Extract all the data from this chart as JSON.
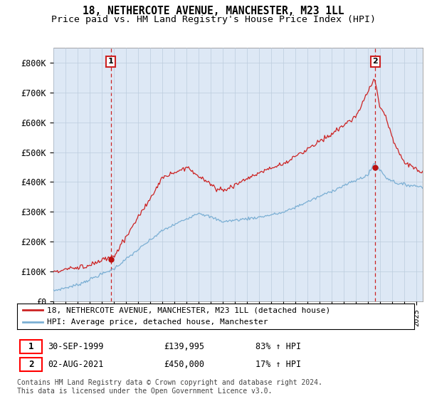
{
  "title": "18, NETHERCOTE AVENUE, MANCHESTER, M23 1LL",
  "subtitle": "Price paid vs. HM Land Registry's House Price Index (HPI)",
  "ylim": [
    0,
    850000
  ],
  "yticks": [
    0,
    100000,
    200000,
    300000,
    400000,
    500000,
    600000,
    700000,
    800000
  ],
  "ytick_labels": [
    "£0",
    "£100K",
    "£200K",
    "£300K",
    "£400K",
    "£500K",
    "£600K",
    "£700K",
    "£800K"
  ],
  "xlim_start": 1995.0,
  "xlim_end": 2025.5,
  "hpi_color": "#7bafd4",
  "price_color": "#cc2222",
  "marker_color": "#bb1111",
  "annotation_color": "#cc2222",
  "background_color": "#ffffff",
  "plot_bg_color": "#dde8f5",
  "grid_color": "#bbccdd",
  "point1_x": 1999.75,
  "point1_y": 139995,
  "point2_x": 2021.58,
  "point2_y": 450000,
  "legend_line1": "18, NETHERCOTE AVENUE, MANCHESTER, M23 1LL (detached house)",
  "legend_line2": "HPI: Average price, detached house, Manchester",
  "footnote": "Contains HM Land Registry data © Crown copyright and database right 2024.\nThis data is licensed under the Open Government Licence v3.0.",
  "title_fontsize": 10.5,
  "subtitle_fontsize": 9.5,
  "tick_fontsize": 8.5
}
